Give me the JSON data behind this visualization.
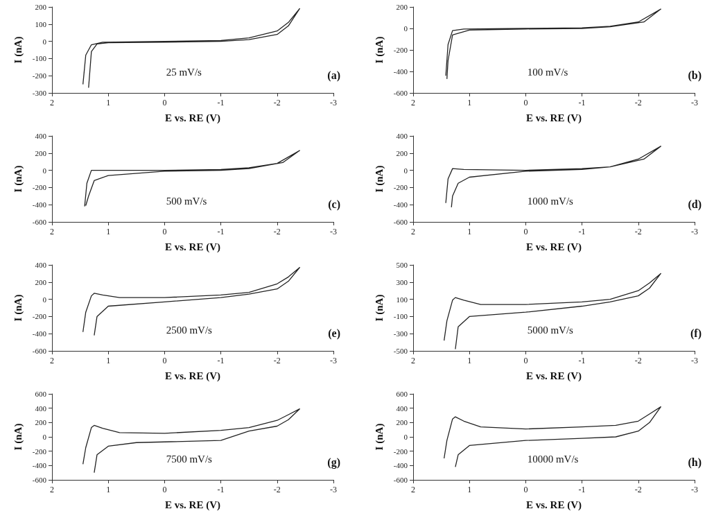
{
  "chart_data": [
    {
      "type": "line",
      "xlabel": "E vs. RE (V)",
      "ylabel": "I (nA)",
      "xlim": [
        2,
        -3
      ],
      "xticks": [
        2,
        1,
        0,
        -1,
        -2,
        -3
      ],
      "ylim": [
        -300,
        200
      ],
      "yticks": [
        -300,
        -200,
        -100,
        0,
        100,
        200
      ],
      "annotations": [
        "25 mV/s",
        "(a)"
      ],
      "marker": "none",
      "series": [
        {
          "color": "#222222",
          "x": [
            1.45,
            1.4,
            1.3,
            1.1,
            0,
            -1,
            -1.5,
            -2,
            -2.2,
            -2.4,
            -2.2,
            -2,
            -1.5,
            -1,
            0,
            1,
            1.2,
            1.3,
            1.35
          ],
          "values": [
            -250,
            -80,
            -20,
            -5,
            0,
            5,
            20,
            60,
            110,
            190,
            90,
            40,
            10,
            0,
            -5,
            -8,
            -15,
            -60,
            -270
          ]
        }
      ]
    },
    {
      "type": "line",
      "xlabel": "E vs. RE (V)",
      "ylabel": "I (nA)",
      "xlim": [
        2,
        -3
      ],
      "xticks": [
        2,
        1,
        0,
        -1,
        -2,
        -3
      ],
      "ylim": [
        -600,
        200
      ],
      "yticks": [
        -600,
        -400,
        -200,
        0,
        200
      ],
      "annotations": [
        "100 mV/s",
        "(b)"
      ],
      "marker": "none",
      "series": [
        {
          "color": "#222222",
          "x": [
            1.42,
            1.38,
            1.3,
            1.1,
            0,
            -1,
            -1.5,
            -2,
            -2.4,
            -2.1,
            -1.5,
            -1,
            0,
            1,
            1.3,
            1.38,
            1.4
          ],
          "values": [
            -440,
            -150,
            -20,
            -5,
            0,
            5,
            20,
            60,
            180,
            60,
            15,
            0,
            -5,
            -15,
            -60,
            -300,
            -470
          ]
        }
      ]
    },
    {
      "type": "line",
      "xlabel": "E vs. RE (V)",
      "ylabel": "I (nA)",
      "xlim": [
        2,
        -3
      ],
      "xticks": [
        2,
        1,
        0,
        -1,
        -2,
        -3
      ],
      "ylim": [
        -600,
        400
      ],
      "yticks": [
        -600,
        -400,
        -200,
        0,
        200,
        400
      ],
      "annotations": [
        "500 mV/s",
        "(c)"
      ],
      "marker": "none",
      "series": [
        {
          "color": "#222222",
          "x": [
            1.42,
            1.38,
            1.3,
            1.1,
            0,
            -1,
            -1.5,
            -2,
            -2.4,
            -2.1,
            -1.5,
            -1,
            0,
            1,
            1.25,
            1.35,
            1.4
          ],
          "values": [
            -420,
            -150,
            0,
            0,
            0,
            10,
            30,
            80,
            230,
            90,
            20,
            0,
            -10,
            -60,
            -120,
            -300,
            -410
          ]
        }
      ]
    },
    {
      "type": "line",
      "xlabel": "E vs. RE (V)",
      "ylabel": "I (nA)",
      "xlim": [
        2,
        -3
      ],
      "xticks": [
        2,
        1,
        0,
        -1,
        -2,
        -3
      ],
      "ylim": [
        -600,
        400
      ],
      "yticks": [
        -600,
        -400,
        -200,
        0,
        200,
        400
      ],
      "annotations": [
        "1000 mV/s",
        "(d)"
      ],
      "marker": "none",
      "series": [
        {
          "color": "#222222",
          "x": [
            1.42,
            1.38,
            1.3,
            1.1,
            0,
            -1,
            -1.5,
            -2,
            -2.4,
            -2.1,
            -1.5,
            -1,
            0,
            1,
            1.2,
            1.3,
            1.32
          ],
          "values": [
            -380,
            -100,
            20,
            10,
            0,
            20,
            40,
            130,
            280,
            130,
            40,
            10,
            -10,
            -80,
            -150,
            -300,
            -430
          ]
        }
      ]
    },
    {
      "type": "line",
      "xlabel": "E vs. RE (V)",
      "ylabel": "I (nA)",
      "xlim": [
        2,
        -3
      ],
      "xticks": [
        2,
        1,
        0,
        -1,
        -2,
        -3
      ],
      "ylim": [
        -600,
        400
      ],
      "yticks": [
        -600,
        -400,
        -200,
        0,
        200,
        400
      ],
      "annotations": [
        "2500 mV/s",
        "(e)"
      ],
      "marker": "none",
      "series": [
        {
          "color": "#222222",
          "x": [
            1.45,
            1.4,
            1.3,
            1.25,
            1.1,
            0.8,
            0,
            -1,
            -1.5,
            -2,
            -2.2,
            -2.4,
            -2.2,
            -2,
            -1.5,
            -1,
            0,
            1,
            1.2,
            1.25
          ],
          "values": [
            -380,
            -150,
            40,
            70,
            50,
            20,
            20,
            50,
            80,
            180,
            260,
            370,
            210,
            120,
            60,
            20,
            -30,
            -80,
            -200,
            -420
          ]
        }
      ]
    },
    {
      "type": "line",
      "xlabel": "E vs. RE (V)",
      "ylabel": "I (nA)",
      "xlim": [
        2,
        -3
      ],
      "xticks": [
        2,
        1,
        0,
        -1,
        -2,
        -3
      ],
      "ylim": [
        -500,
        500
      ],
      "yticks": [
        -500,
        -300,
        -100,
        100,
        300,
        500
      ],
      "annotations": [
        "5000 mV/s",
        "(f)"
      ],
      "marker": "none",
      "series": [
        {
          "color": "#222222",
          "x": [
            1.45,
            1.4,
            1.3,
            1.25,
            1.1,
            0.8,
            0,
            -1,
            -1.5,
            -2,
            -2.2,
            -2.4,
            -2.2,
            -2,
            -1.5,
            -1,
            0,
            1,
            1.2,
            1.25
          ],
          "values": [
            -380,
            -150,
            90,
            120,
            90,
            40,
            40,
            70,
            100,
            200,
            290,
            400,
            230,
            140,
            70,
            20,
            -50,
            -100,
            -220,
            -480
          ]
        }
      ]
    },
    {
      "type": "line",
      "xlabel": "E vs. RE (V)",
      "ylabel": "I (nA)",
      "xlim": [
        2,
        -3
      ],
      "xticks": [
        2,
        1,
        0,
        -1,
        -2,
        -3
      ],
      "ylim": [
        -600,
        600
      ],
      "yticks": [
        -600,
        -400,
        -200,
        0,
        200,
        400,
        600
      ],
      "annotations": [
        "7500 mV/s",
        "(g)"
      ],
      "marker": "none",
      "series": [
        {
          "color": "#222222",
          "x": [
            1.45,
            1.4,
            1.3,
            1.25,
            1.1,
            0.8,
            0,
            -1,
            -1.5,
            -2,
            -2.2,
            -2.4,
            -2.2,
            -2,
            -1.5,
            -1,
            0,
            0.5,
            1,
            1.2,
            1.25
          ],
          "values": [
            -380,
            -150,
            130,
            160,
            120,
            60,
            50,
            90,
            130,
            230,
            310,
            390,
            240,
            150,
            80,
            -50,
            -70,
            -80,
            -130,
            -250,
            -500
          ]
        }
      ]
    },
    {
      "type": "line",
      "xlabel": "E vs. RE (V)",
      "ylabel": "I (nA)",
      "xlim": [
        2,
        -3
      ],
      "xticks": [
        2,
        1,
        0,
        -1,
        -2,
        -3
      ],
      "ylim": [
        -600,
        600
      ],
      "yticks": [
        -600,
        -400,
        -200,
        0,
        200,
        400,
        600
      ],
      "annotations": [
        "10000 mV/s",
        "(h)"
      ],
      "marker": "none",
      "series": [
        {
          "color": "#222222",
          "x": [
            1.45,
            1.4,
            1.3,
            1.25,
            1.1,
            0.8,
            0,
            -1,
            -1.6,
            -2,
            -2.2,
            -2.4,
            -2.2,
            -2,
            -1.6,
            -1,
            0,
            1,
            1.2,
            1.25
          ],
          "values": [
            -300,
            -50,
            250,
            280,
            220,
            140,
            110,
            140,
            160,
            220,
            320,
            420,
            200,
            80,
            0,
            -20,
            -50,
            -120,
            -250,
            -420
          ]
        }
      ]
    }
  ]
}
